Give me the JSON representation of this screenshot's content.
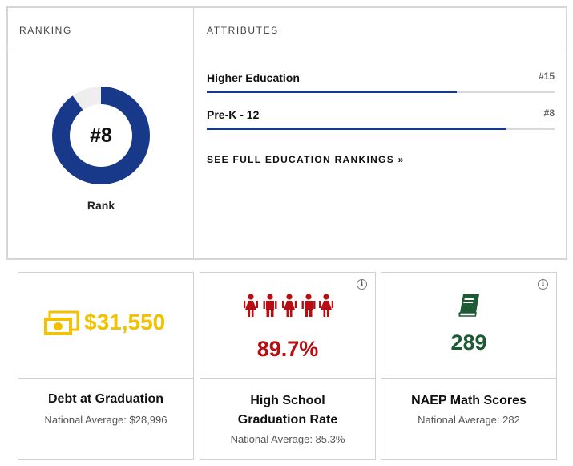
{
  "ranking": {
    "header": "RANKING",
    "rank_value": "#8",
    "rank_label": "Rank",
    "donut_fraction": 0.9,
    "colors": {
      "fill": "#18388a",
      "track": "#eeeeee"
    }
  },
  "attributes": {
    "header": "ATTRIBUTES",
    "items": [
      {
        "name": "Higher Education",
        "rank": "#15",
        "fraction": 0.72
      },
      {
        "name": "Pre-K - 12",
        "rank": "#8",
        "fraction": 0.86
      }
    ],
    "link_label": "SEE FULL EDUCATION RANKINGS »",
    "bar_color": "#18388a"
  },
  "cards": [
    {
      "value": "$31,550",
      "title_lines": [
        "Debt at Graduation"
      ],
      "subtitle": "National Average: $28,996",
      "icon": "money-bill-icon",
      "color": "#f2c200"
    },
    {
      "value": "89.7%",
      "title_lines": [
        "High School",
        "Graduation Rate"
      ],
      "subtitle": "National Average: 85.3%",
      "icon": "students-icon",
      "color": "#b80d12",
      "info": "i"
    },
    {
      "value": "289",
      "title_lines": [
        "NAEP Math Scores"
      ],
      "subtitle": "National Average: 282",
      "icon": "book-icon",
      "color": "#1d5b34",
      "info": "i"
    }
  ]
}
